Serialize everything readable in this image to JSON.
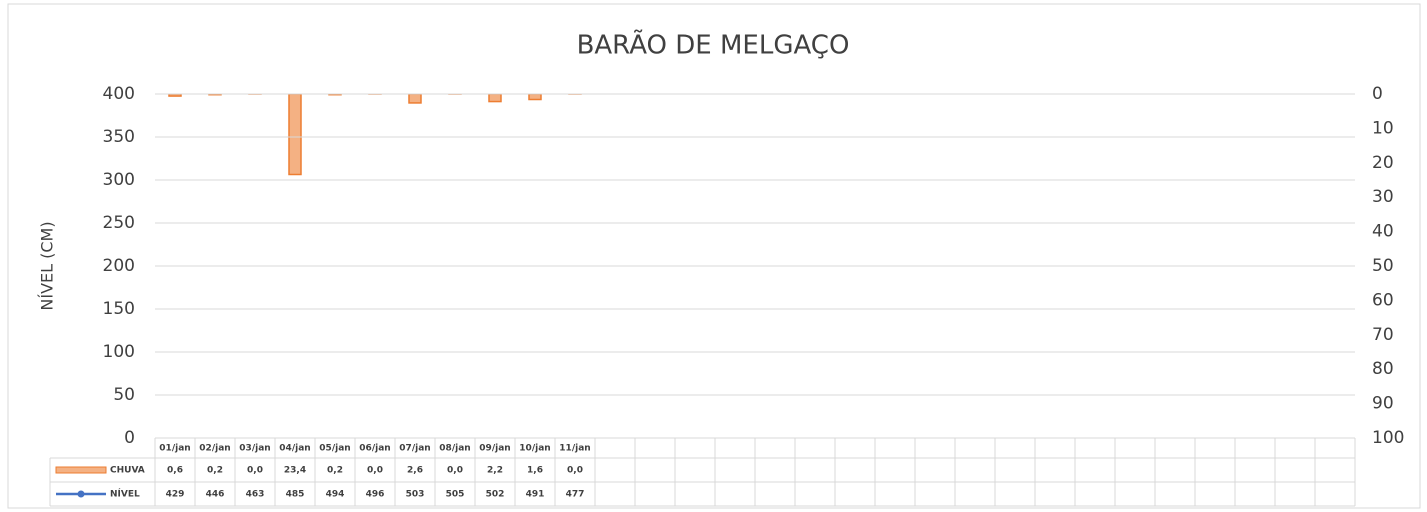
{
  "chart_data": {
    "type": "bar",
    "title": "BARÃO DE MELGAÇO",
    "y_label": "NÍVEL (CM)",
    "categories": [
      "01/jan",
      "02/jan",
      "03/jan",
      "04/jan",
      "05/jan",
      "06/jan",
      "07/jan",
      "08/jan",
      "09/jan",
      "10/jan",
      "11/jan",
      null,
      null,
      null,
      null,
      null,
      null,
      null,
      null,
      null,
      null,
      null,
      null,
      null,
      null,
      null,
      null,
      null,
      null,
      null
    ],
    "series": [
      {
        "name": "CHUVA",
        "type": "bar",
        "axis": "y2",
        "color": "#f4b183",
        "edge": "#ed7d31",
        "values": [
          0.6,
          0.2,
          0.0,
          23.4,
          0.2,
          0.0,
          2.6,
          0.0,
          2.2,
          1.6,
          0.0,
          null,
          null,
          null,
          null,
          null,
          null,
          null,
          null,
          null,
          null,
          null,
          null,
          null,
          null,
          null,
          null,
          null,
          null,
          null
        ],
        "value_labels": [
          "0,6",
          "0,2",
          "0,0",
          "23,4",
          "0,2",
          "0,0",
          "2,6",
          "0,0",
          "2,2",
          "1,6",
          "0,0",
          null,
          null,
          null,
          null,
          null,
          null,
          null,
          null,
          null,
          null,
          null,
          null,
          null,
          null,
          null,
          null,
          null,
          null,
          null
        ]
      },
      {
        "name": "NÍVEL",
        "type": "line",
        "color": "#4472c4",
        "values": [
          429,
          446,
          463,
          485,
          494,
          496,
          503,
          505,
          502,
          491,
          477,
          null,
          null,
          null,
          null,
          null,
          null,
          null,
          null,
          null,
          null,
          null,
          null,
          null,
          null,
          null,
          null,
          null,
          null,
          null
        ]
      }
    ],
    "ylim": [
      0,
      400
    ],
    "yticks": [
      0,
      50,
      100,
      150,
      200,
      250,
      300,
      350,
      400
    ],
    "y2lim": [
      0,
      100
    ],
    "y2ticks": [
      0,
      10,
      20,
      30,
      40,
      50,
      60,
      70,
      80,
      90,
      100
    ],
    "y2_inverted": true,
    "grid": true,
    "data_table": true
  }
}
